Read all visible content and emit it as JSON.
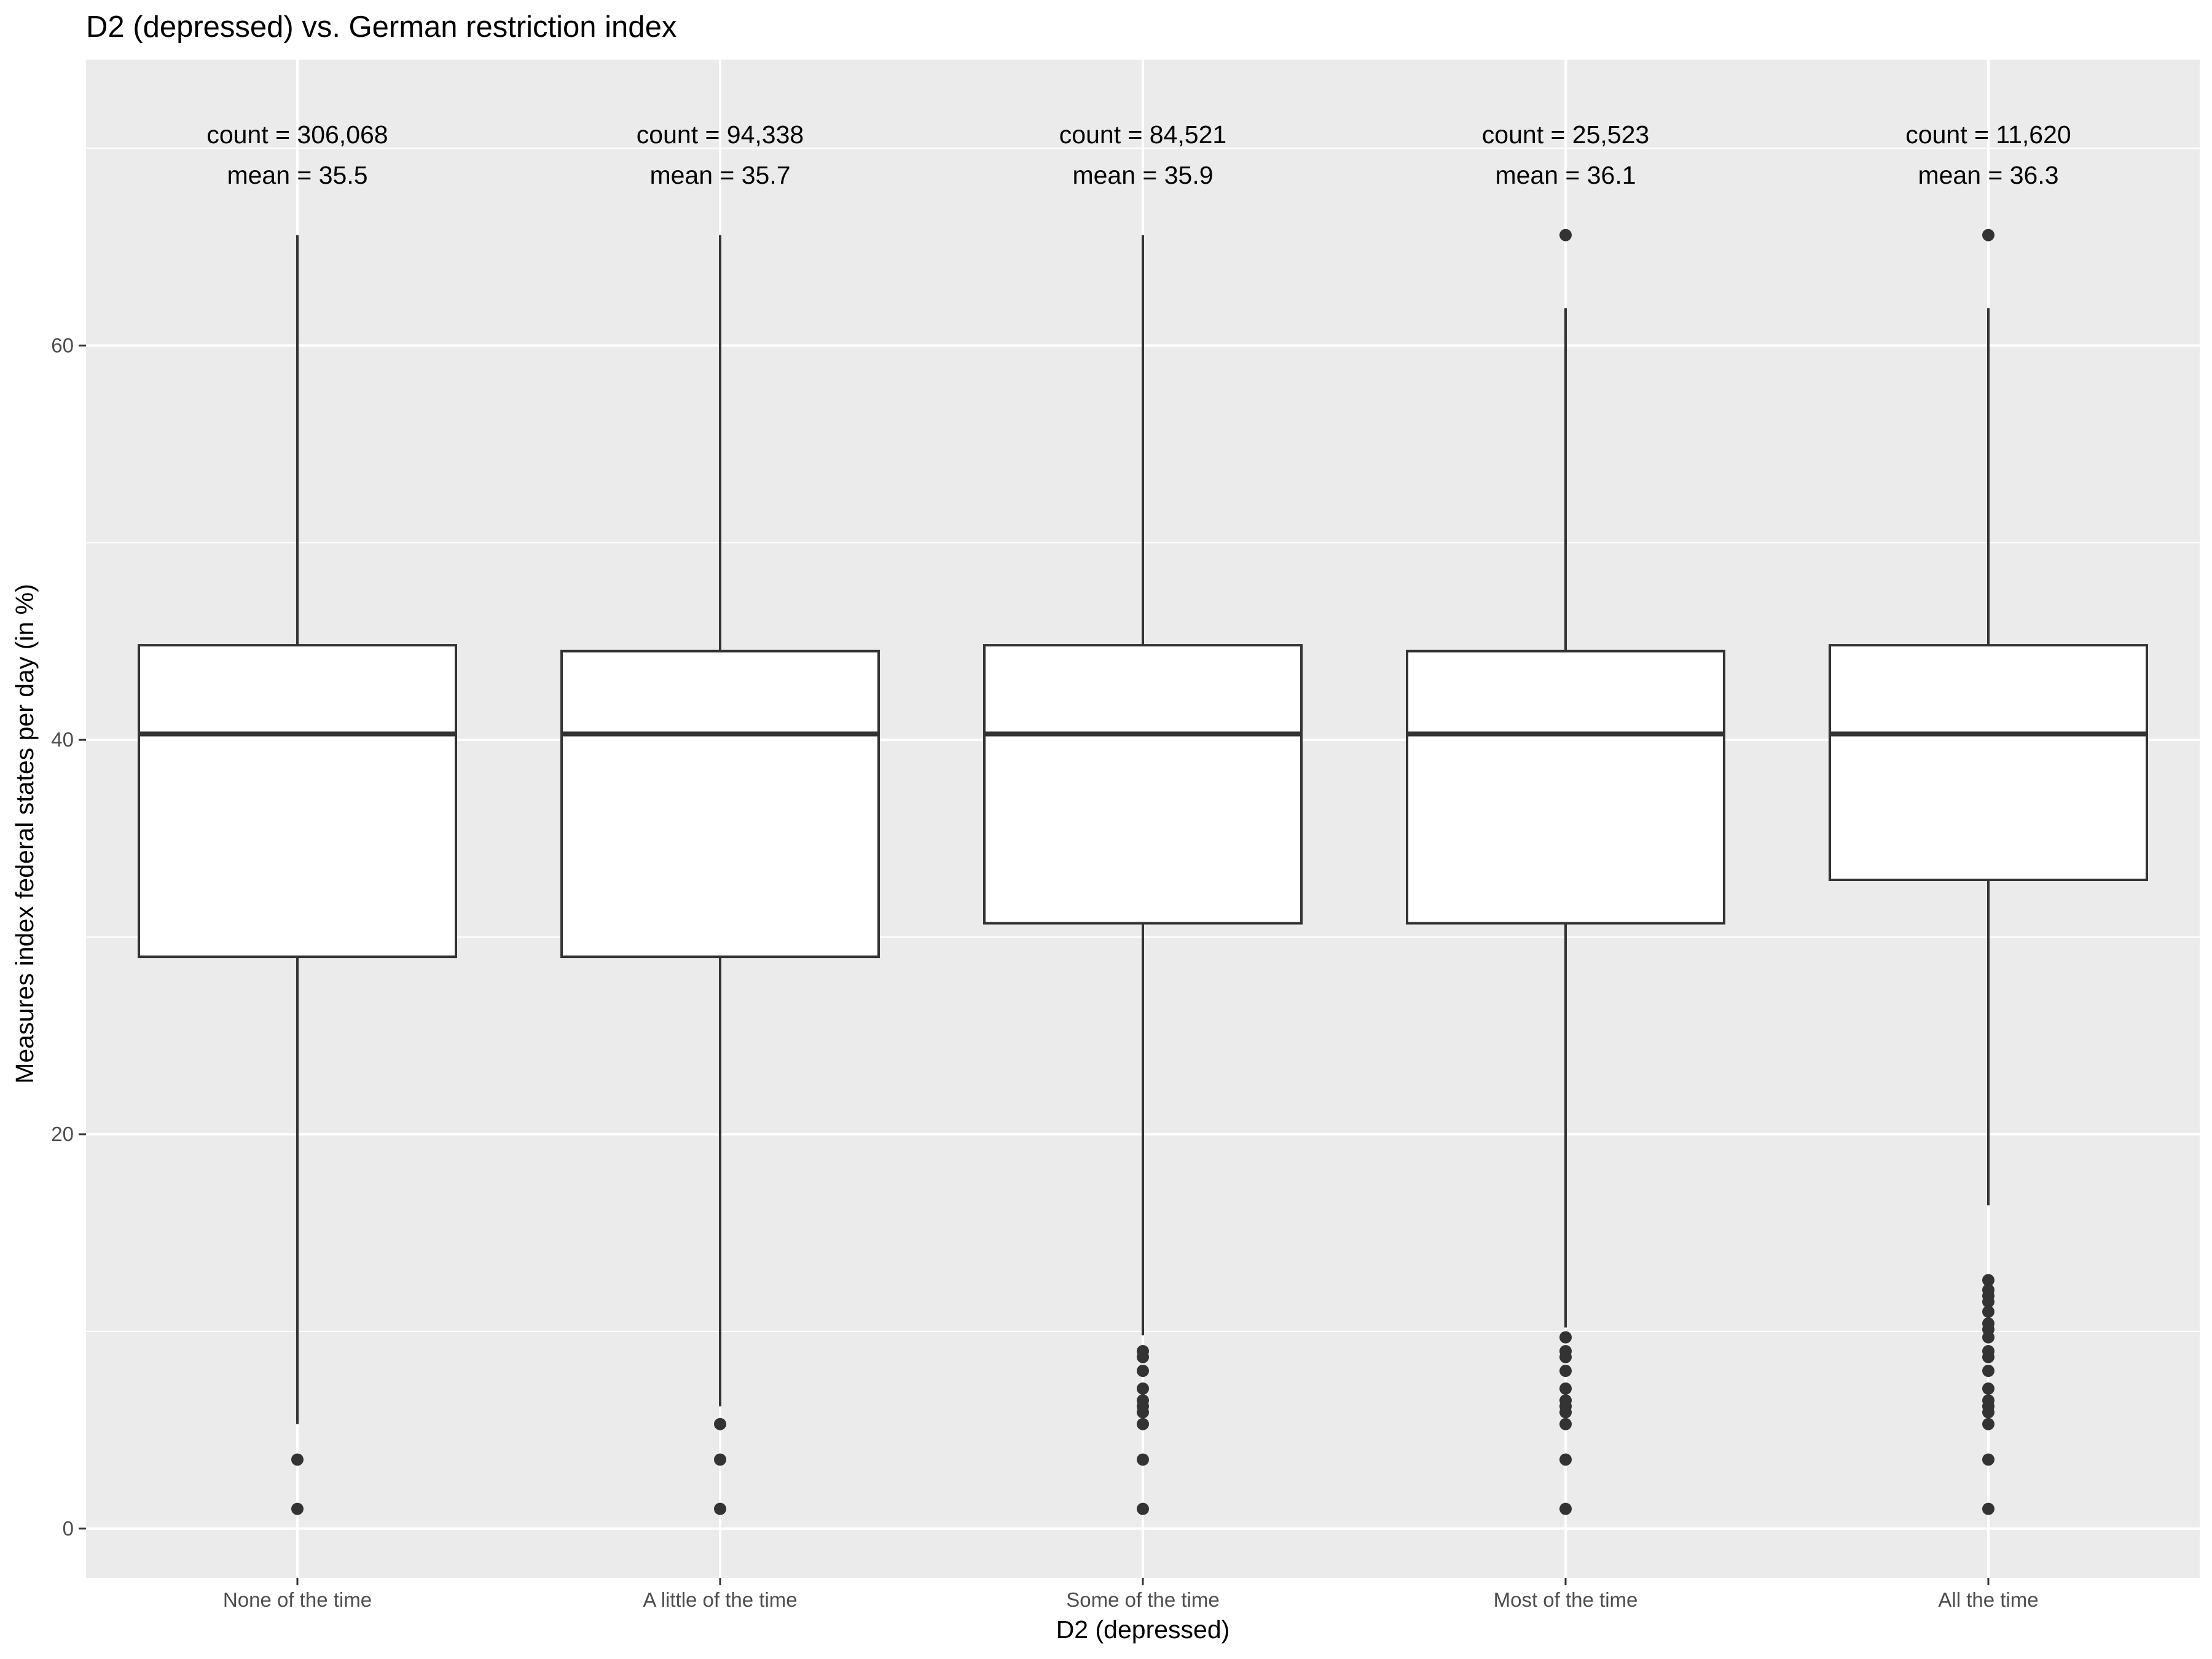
{
  "chart_data": {
    "type": "boxplot",
    "title": "D2 (depressed) vs. German restriction index",
    "xlabel": "D2 (depressed)",
    "ylabel": "Measures index federal states per day (in %)",
    "categories": [
      "None of the time",
      "A little of the time",
      "Some of the time",
      "Most of the time",
      "All the time"
    ],
    "ylim": [
      -2.5,
      74.5
    ],
    "yticks": [
      0,
      20,
      40,
      60
    ],
    "grid": true,
    "colors": {
      "panel_background": "#ebebeb",
      "grid": "#ffffff",
      "box_fill": "#ffffff",
      "box_stroke": "#333333",
      "outlier": "#333333"
    },
    "boxes": [
      {
        "category": "None of the time",
        "count_label": "count = 306,068",
        "mean_label": "mean = 35.5",
        "whisker_low": 5.3,
        "q1": 29.0,
        "median": 40.3,
        "q3": 44.8,
        "whisker_high": 65.6,
        "outliers": [
          3.5,
          1.0
        ]
      },
      {
        "category": "A little of the time",
        "count_label": "count = 94,338",
        "mean_label": "mean = 35.7",
        "whisker_low": 6.2,
        "q1": 29.0,
        "median": 40.3,
        "q3": 44.5,
        "whisker_high": 65.6,
        "outliers": [
          5.3,
          3.5,
          1.0
        ]
      },
      {
        "category": "Some of the time",
        "count_label": "count = 84,521",
        "mean_label": "mean = 35.9",
        "whisker_low": 9.8,
        "q1": 30.7,
        "median": 40.3,
        "q3": 44.8,
        "whisker_high": 65.6,
        "outliers": [
          9.0,
          8.7,
          8.0,
          7.1,
          6.5,
          6.2,
          5.9,
          5.3,
          3.5,
          1.0
        ]
      },
      {
        "category": "Most of the time",
        "count_label": "count = 25,523",
        "mean_label": "mean = 36.1",
        "whisker_low": 10.2,
        "q1": 30.7,
        "median": 40.3,
        "q3": 44.5,
        "whisker_high": 61.9,
        "outliers": [
          65.6,
          9.7,
          9.0,
          8.7,
          8.0,
          7.1,
          6.5,
          6.2,
          5.9,
          5.3,
          3.5,
          1.0
        ]
      },
      {
        "category": "All the time",
        "count_label": "count = 11,620",
        "mean_label": "mean = 36.3",
        "whisker_low": 16.4,
        "q1": 32.9,
        "median": 40.3,
        "q3": 44.8,
        "whisker_high": 61.9,
        "outliers": [
          65.6,
          12.6,
          12.1,
          11.8,
          11.5,
          11.0,
          10.4,
          10.1,
          9.7,
          9.0,
          8.7,
          8.0,
          7.1,
          6.5,
          6.2,
          5.9,
          5.3,
          3.5,
          1.0
        ]
      }
    ]
  }
}
